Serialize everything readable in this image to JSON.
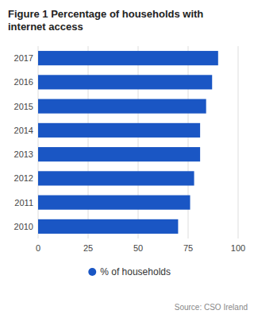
{
  "chart_data": {
    "type": "bar",
    "orientation": "horizontal",
    "title": "Figure 1 Percentage of households with\ninternet access",
    "categories": [
      "2010",
      "2011",
      "2012",
      "2013",
      "2014",
      "2015",
      "2016",
      "2017"
    ],
    "series": [
      {
        "name": "% of households",
        "color": "#1a56c4",
        "values": [
          70,
          76,
          78,
          81,
          81,
          84,
          87,
          90
        ]
      }
    ],
    "xlim": [
      0,
      100
    ],
    "xticks": [
      0,
      25,
      50,
      75,
      100
    ],
    "grid": true,
    "legend": "bottom",
    "annotations": [
      "Source: CSO Ireland"
    ]
  }
}
